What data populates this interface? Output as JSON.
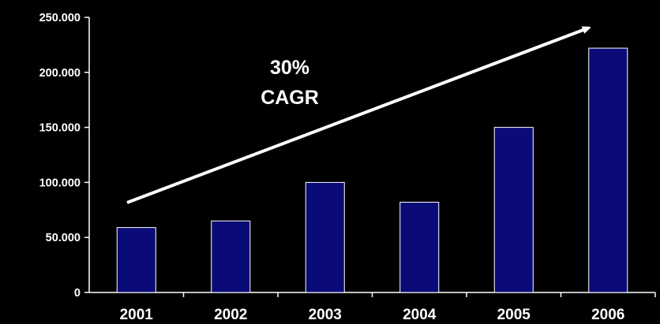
{
  "chart_data": {
    "type": "bar",
    "categories": [
      "2001",
      "2002",
      "2003",
      "2004",
      "2005",
      "2006"
    ],
    "values": [
      59000,
      65000,
      100000,
      82000,
      150000,
      222000
    ],
    "ylim": [
      0,
      250000
    ],
    "yticks": [
      0,
      50000,
      100000,
      150000,
      200000,
      250000
    ],
    "ytick_labels": [
      "0",
      "50.000",
      "100.000",
      "150.000",
      "200.000",
      "250.000"
    ],
    "title": "",
    "xlabel": "",
    "ylabel": "",
    "grid": false,
    "legend": "none",
    "annotation": {
      "line1": "30%",
      "line2": "CAGR"
    },
    "colors": {
      "background": "#000000",
      "bar_fill": "#0a0a78",
      "bar_stroke": "#ffffff",
      "axis": "#ffffff",
      "text": "#ffffff",
      "arrow": "#ffffff"
    }
  }
}
